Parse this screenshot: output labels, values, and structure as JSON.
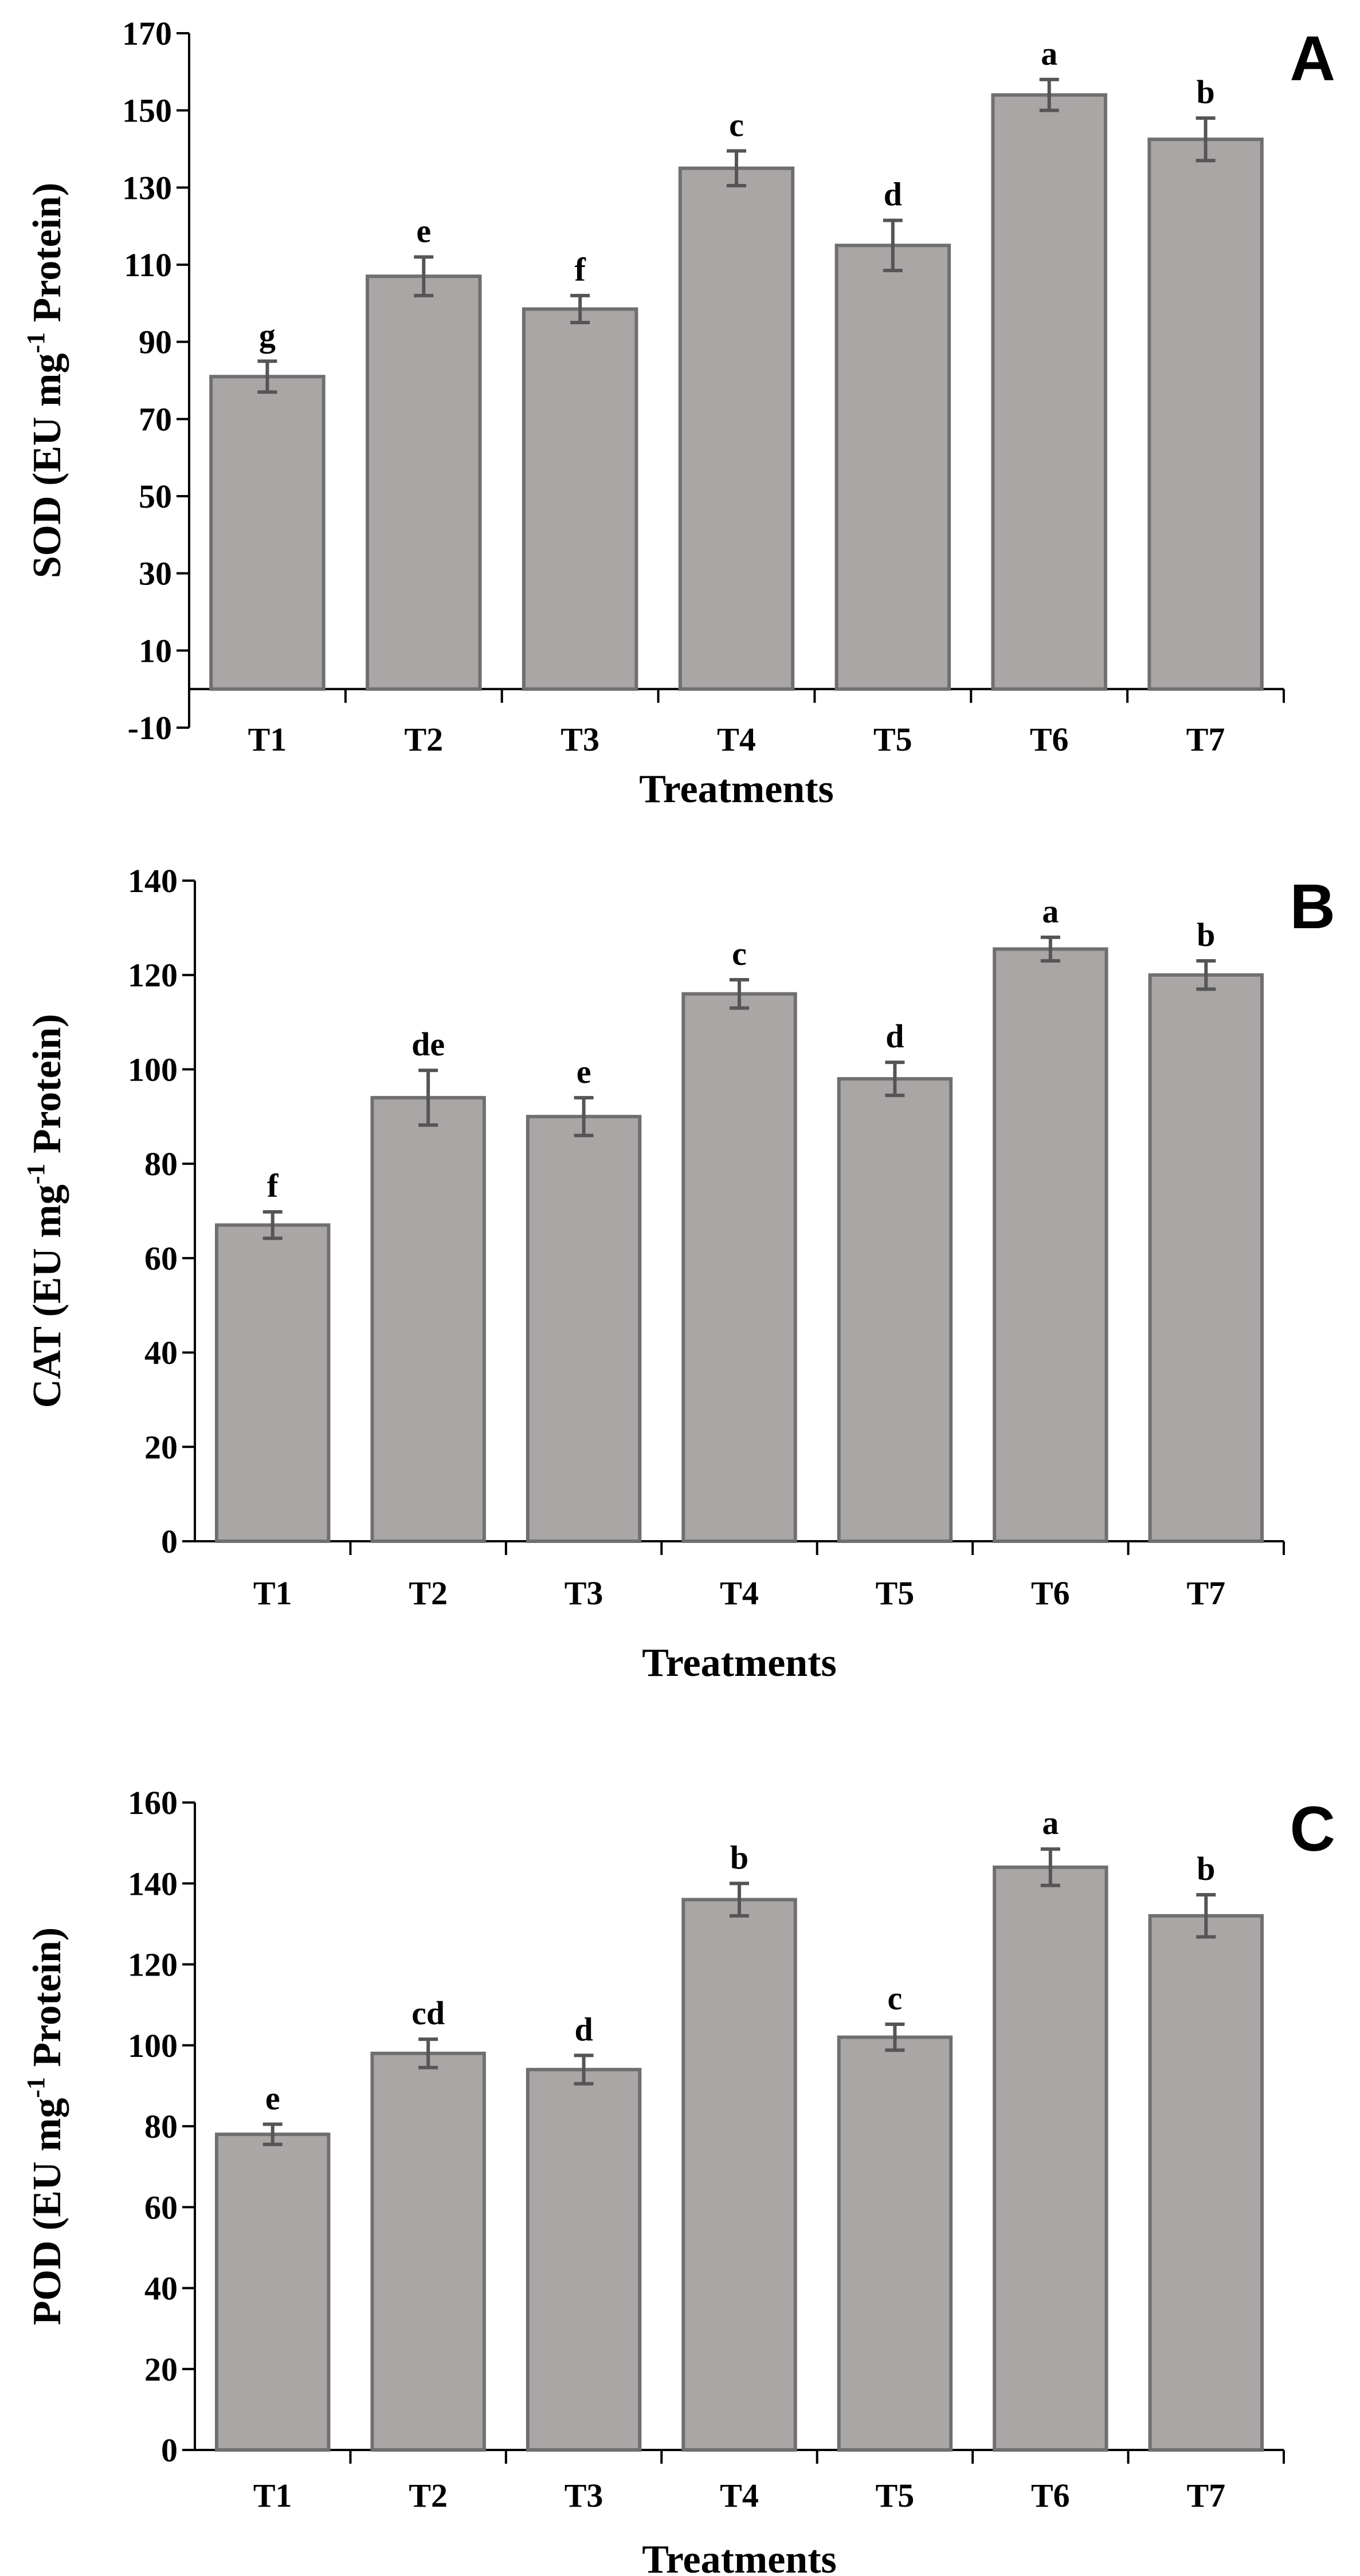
{
  "colors": {
    "bar_fill": "#aaa6a5",
    "bar_stroke": "#6f6f6f",
    "error_bar": "#555555",
    "axis": "#000000"
  },
  "chart_data": [
    {
      "type": "bar",
      "panel": "A",
      "xlabel": "Treatments",
      "ylabel": {
        "pre": "SOD (EU mg",
        "sup": "-1",
        "post": " Protein)"
      },
      "ylim": [
        -10,
        170
      ],
      "yticks": [
        -10,
        10,
        30,
        50,
        70,
        90,
        110,
        130,
        150,
        170
      ],
      "categories": [
        "T1",
        "T2",
        "T3",
        "T4",
        "T5",
        "T6",
        "T7"
      ],
      "values": [
        81,
        107,
        98.5,
        135,
        115,
        154,
        142.5
      ],
      "errors": [
        4,
        5,
        3.5,
        4.5,
        6.5,
        4,
        5.5
      ],
      "letters": [
        "g",
        "e",
        "f",
        "c",
        "d",
        "a",
        "b"
      ],
      "grid": false
    },
    {
      "type": "bar",
      "panel": "B",
      "xlabel": "Treatments",
      "ylabel": {
        "pre": "CAT (EU mg",
        "sup": "-1",
        "post": " Protein)"
      },
      "ylim": [
        0,
        140
      ],
      "yticks": [
        0,
        20,
        40,
        60,
        80,
        100,
        120,
        140
      ],
      "categories": [
        "T1",
        "T2",
        "T3",
        "T4",
        "T5",
        "T6",
        "T7"
      ],
      "values": [
        67,
        94,
        90,
        116,
        98,
        125.5,
        120
      ],
      "errors": [
        2.8,
        5.8,
        4,
        3,
        3.5,
        2.5,
        3
      ],
      "letters": [
        "f",
        "de",
        "e",
        "c",
        "d",
        "a",
        "b"
      ],
      "grid": false
    },
    {
      "type": "bar",
      "panel": "C",
      "xlabel": "Treatments",
      "ylabel": {
        "pre": "POD (EU mg",
        "sup": "-1",
        "post": " Protein)"
      },
      "ylim": [
        0,
        160
      ],
      "yticks": [
        0,
        20,
        40,
        60,
        80,
        100,
        120,
        140,
        160
      ],
      "categories": [
        "T1",
        "T2",
        "T3",
        "T4",
        "T5",
        "T6",
        "T7"
      ],
      "values": [
        78,
        98,
        94,
        136,
        102,
        144,
        132
      ],
      "errors": [
        2.5,
        3.5,
        3.5,
        4,
        3.2,
        4.5,
        5.2
      ],
      "letters": [
        "e",
        "cd",
        "d",
        "b",
        "c",
        "a",
        "b"
      ],
      "grid": false
    }
  ]
}
